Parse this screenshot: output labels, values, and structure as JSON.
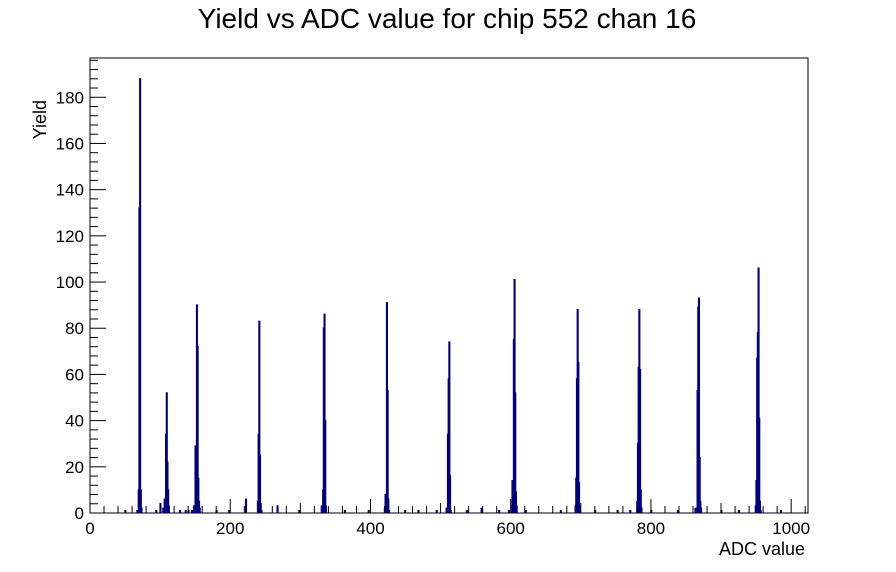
{
  "chart_data": {
    "type": "histogram",
    "title": "Yield vs ADC value for chip 552 chan 16",
    "xlabel": "ADC value",
    "ylabel": "Yield",
    "xlim": [
      0,
      1024
    ],
    "ylim": [
      0,
      197
    ],
    "x_ticks": [
      0,
      200,
      400,
      600,
      800,
      1000
    ],
    "y_ticks": [
      0,
      20,
      40,
      60,
      80,
      100,
      120,
      140,
      160,
      180
    ],
    "grid": false,
    "legend": "none",
    "bin_width": 1,
    "line_color": "#00007f",
    "bins": [
      {
        "x": 50,
        "y": 1
      },
      {
        "x": 67,
        "y": 1
      },
      {
        "x": 69,
        "y": 10
      },
      {
        "x": 70,
        "y": 132
      },
      {
        "x": 71,
        "y": 188
      },
      {
        "x": 72,
        "y": 10
      },
      {
        "x": 73,
        "y": 2
      },
      {
        "x": 94,
        "y": 1
      },
      {
        "x": 100,
        "y": 4
      },
      {
        "x": 104,
        "y": 2
      },
      {
        "x": 106,
        "y": 6
      },
      {
        "x": 108,
        "y": 34
      },
      {
        "x": 109,
        "y": 52
      },
      {
        "x": 110,
        "y": 22
      },
      {
        "x": 111,
        "y": 10
      },
      {
        "x": 112,
        "y": 3
      },
      {
        "x": 128,
        "y": 1
      },
      {
        "x": 136,
        "y": 1
      },
      {
        "x": 140,
        "y": 1
      },
      {
        "x": 145,
        "y": 1
      },
      {
        "x": 148,
        "y": 3
      },
      {
        "x": 150,
        "y": 29
      },
      {
        "x": 152,
        "y": 90
      },
      {
        "x": 153,
        "y": 72
      },
      {
        "x": 154,
        "y": 15
      },
      {
        "x": 155,
        "y": 5
      },
      {
        "x": 156,
        "y": 2
      },
      {
        "x": 180,
        "y": 1
      },
      {
        "x": 198,
        "y": 1
      },
      {
        "x": 222,
        "y": 6
      },
      {
        "x": 239,
        "y": 5
      },
      {
        "x": 240,
        "y": 34
      },
      {
        "x": 241,
        "y": 83
      },
      {
        "x": 242,
        "y": 25
      },
      {
        "x": 243,
        "y": 4
      },
      {
        "x": 244,
        "y": 1
      },
      {
        "x": 267,
        "y": 3
      },
      {
        "x": 298,
        "y": 1
      },
      {
        "x": 330,
        "y": 3
      },
      {
        "x": 332,
        "y": 10
      },
      {
        "x": 333,
        "y": 80
      },
      {
        "x": 334,
        "y": 86
      },
      {
        "x": 335,
        "y": 40
      },
      {
        "x": 336,
        "y": 3
      },
      {
        "x": 363,
        "y": 1
      },
      {
        "x": 397,
        "y": 1
      },
      {
        "x": 420,
        "y": 2
      },
      {
        "x": 421,
        "y": 8
      },
      {
        "x": 423,
        "y": 91
      },
      {
        "x": 424,
        "y": 53
      },
      {
        "x": 425,
        "y": 6
      },
      {
        "x": 426,
        "y": 1
      },
      {
        "x": 449,
        "y": 1
      },
      {
        "x": 468,
        "y": 1
      },
      {
        "x": 494,
        "y": 1
      },
      {
        "x": 508,
        "y": 2
      },
      {
        "x": 510,
        "y": 34
      },
      {
        "x": 511,
        "y": 58
      },
      {
        "x": 512,
        "y": 74
      },
      {
        "x": 513,
        "y": 16
      },
      {
        "x": 514,
        "y": 1
      },
      {
        "x": 537,
        "y": 1
      },
      {
        "x": 558,
        "y": 2
      },
      {
        "x": 583,
        "y": 1
      },
      {
        "x": 597,
        "y": 1
      },
      {
        "x": 601,
        "y": 3
      },
      {
        "x": 602,
        "y": 14
      },
      {
        "x": 603,
        "y": 4
      },
      {
        "x": 604,
        "y": 75
      },
      {
        "x": 605,
        "y": 101
      },
      {
        "x": 606,
        "y": 52
      },
      {
        "x": 607,
        "y": 9
      },
      {
        "x": 608,
        "y": 3
      },
      {
        "x": 621,
        "y": 1
      },
      {
        "x": 671,
        "y": 1
      },
      {
        "x": 692,
        "y": 3
      },
      {
        "x": 693,
        "y": 15
      },
      {
        "x": 694,
        "y": 58
      },
      {
        "x": 695,
        "y": 88
      },
      {
        "x": 696,
        "y": 65
      },
      {
        "x": 697,
        "y": 13
      },
      {
        "x": 698,
        "y": 3
      },
      {
        "x": 720,
        "y": 1
      },
      {
        "x": 752,
        "y": 1
      },
      {
        "x": 770,
        "y": 1
      },
      {
        "x": 780,
        "y": 5
      },
      {
        "x": 781,
        "y": 30
      },
      {
        "x": 782,
        "y": 63
      },
      {
        "x": 783,
        "y": 88
      },
      {
        "x": 784,
        "y": 62
      },
      {
        "x": 785,
        "y": 10
      },
      {
        "x": 786,
        "y": 2
      },
      {
        "x": 800,
        "y": 1
      },
      {
        "x": 838,
        "y": 1
      },
      {
        "x": 863,
        "y": 2
      },
      {
        "x": 866,
        "y": 53
      },
      {
        "x": 867,
        "y": 89
      },
      {
        "x": 868,
        "y": 93
      },
      {
        "x": 869,
        "y": 24
      },
      {
        "x": 870,
        "y": 5
      },
      {
        "x": 871,
        "y": 2
      },
      {
        "x": 900,
        "y": 1
      },
      {
        "x": 925,
        "y": 1
      },
      {
        "x": 949,
        "y": 3
      },
      {
        "x": 950,
        "y": 14
      },
      {
        "x": 951,
        "y": 67
      },
      {
        "x": 952,
        "y": 78
      },
      {
        "x": 953,
        "y": 106
      },
      {
        "x": 954,
        "y": 41
      },
      {
        "x": 955,
        "y": 5
      },
      {
        "x": 956,
        "y": 1
      },
      {
        "x": 985,
        "y": 1
      }
    ]
  }
}
